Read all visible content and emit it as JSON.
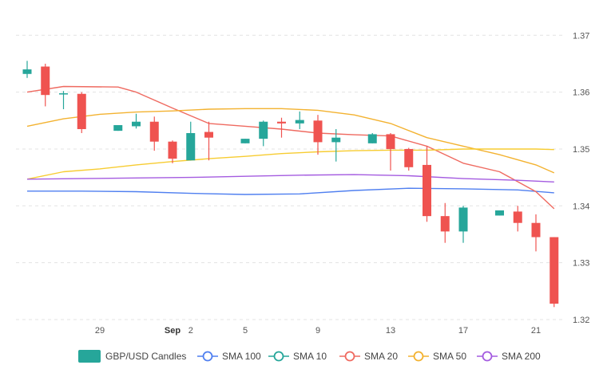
{
  "chart_data": {
    "type": "candlestick",
    "title": "",
    "xlabel": "",
    "ylabel": "",
    "ylim": [
      1.32,
      1.372
    ],
    "y_ticks": [
      "1.37",
      "1.36",
      "1.35",
      "1.34",
      "1.33",
      "1.32"
    ],
    "x_ticks": [
      {
        "day": 29,
        "label": "29",
        "bold": false
      },
      {
        "day": 33,
        "label": "Sep",
        "bold": true
      },
      {
        "day": 34,
        "label": "2",
        "bold": false
      },
      {
        "day": 37,
        "label": "5",
        "bold": false
      },
      {
        "day": 41,
        "label": "9",
        "bold": false
      },
      {
        "day": 45,
        "label": "13",
        "bold": false
      },
      {
        "day": 49,
        "label": "17",
        "bold": false
      },
      {
        "day": 53,
        "label": "21",
        "bold": false
      }
    ],
    "grid": "horizontal dashed",
    "legend_position": "bottom",
    "candles": {
      "name": "GBP/USD Candles",
      "up_color": "#26a69a",
      "down_color": "#ef5350",
      "data": [
        {
          "day": 25,
          "o": 1.3632,
          "h": 1.3655,
          "l": 1.3625,
          "c": 1.364
        },
        {
          "day": 26,
          "o": 1.3645,
          "h": 1.365,
          "l": 1.3575,
          "c": 1.3595
        },
        {
          "day": 27,
          "o": 1.3597,
          "h": 1.3602,
          "l": 1.357,
          "c": 1.3598
        },
        {
          "day": 28,
          "o": 1.3597,
          "h": 1.36,
          "l": 1.3528,
          "c": 1.3535
        },
        {
          "day": 30,
          "o": 1.3532,
          "h": 1.3542,
          "l": 1.3532,
          "c": 1.3542
        },
        {
          "day": 31,
          "o": 1.354,
          "h": 1.3562,
          "l": 1.3536,
          "c": 1.3548
        },
        {
          "day": 32,
          "o": 1.3548,
          "h": 1.3557,
          "l": 1.3497,
          "c": 1.3513
        },
        {
          "day": 33,
          "o": 1.3513,
          "h": 1.3515,
          "l": 1.3475,
          "c": 1.3483
        },
        {
          "day": 34,
          "o": 1.348,
          "h": 1.3548,
          "l": 1.348,
          "c": 1.3528
        },
        {
          "day": 35,
          "o": 1.353,
          "h": 1.3548,
          "l": 1.348,
          "c": 1.352
        },
        {
          "day": 37,
          "o": 1.351,
          "h": 1.3518,
          "l": 1.351,
          "c": 1.3518
        },
        {
          "day": 38,
          "o": 1.3518,
          "h": 1.355,
          "l": 1.3505,
          "c": 1.3548
        },
        {
          "day": 39,
          "o": 1.3548,
          "h": 1.3555,
          "l": 1.352,
          "c": 1.3545
        },
        {
          "day": 40,
          "o": 1.3545,
          "h": 1.3566,
          "l": 1.3535,
          "c": 1.3551
        },
        {
          "day": 41,
          "o": 1.355,
          "h": 1.356,
          "l": 1.349,
          "c": 1.3512
        },
        {
          "day": 42,
          "o": 1.3512,
          "h": 1.3535,
          "l": 1.3478,
          "c": 1.352
        },
        {
          "day": 44,
          "o": 1.351,
          "h": 1.3528,
          "l": 1.351,
          "c": 1.3526
        },
        {
          "day": 45,
          "o": 1.3526,
          "h": 1.3528,
          "l": 1.3462,
          "c": 1.35
        },
        {
          "day": 46,
          "o": 1.35,
          "h": 1.3502,
          "l": 1.3462,
          "c": 1.3468
        },
        {
          "day": 47,
          "o": 1.3472,
          "h": 1.3505,
          "l": 1.3372,
          "c": 1.3382
        },
        {
          "day": 48,
          "o": 1.3382,
          "h": 1.3405,
          "l": 1.3335,
          "c": 1.3355
        },
        {
          "day": 49,
          "o": 1.3355,
          "h": 1.34,
          "l": 1.3335,
          "c": 1.3397
        },
        {
          "day": 51,
          "o": 1.3383,
          "h": 1.3392,
          "l": 1.3383,
          "c": 1.3392
        },
        {
          "day": 52,
          "o": 1.339,
          "h": 1.34,
          "l": 1.3355,
          "c": 1.337
        },
        {
          "day": 53,
          "o": 1.337,
          "h": 1.3385,
          "l": 1.332,
          "c": 1.3345
        },
        {
          "day": 54,
          "o": 1.3345,
          "h": 1.3345,
          "l": 1.3222,
          "c": 1.3228
        }
      ]
    },
    "series": [
      {
        "name": "SMA 100",
        "color": "#4f7ff0",
        "x": [
          25,
          28,
          31,
          34,
          37,
          40,
          43,
          46,
          49,
          52,
          54
        ],
        "values": [
          1.3426,
          1.3426,
          1.3425,
          1.3422,
          1.342,
          1.3421,
          1.3427,
          1.3431,
          1.343,
          1.3428,
          1.3423
        ]
      },
      {
        "name": "SMA 10",
        "color": "#26a69a",
        "x": [],
        "values": []
      },
      {
        "name": "SMA 20",
        "color": "#ef6a60",
        "x": [
          25,
          27,
          30,
          31,
          33,
          35,
          37,
          39,
          41,
          43,
          45,
          47,
          49,
          51,
          53,
          54
        ],
        "values": [
          1.36,
          1.361,
          1.3609,
          1.36,
          1.3572,
          1.3545,
          1.354,
          1.3535,
          1.3528,
          1.3525,
          1.3523,
          1.3505,
          1.3475,
          1.346,
          1.3425,
          1.3395
        ]
      },
      {
        "name": "SMA 50",
        "color": "#f3b230",
        "x": [
          25,
          27,
          29,
          31,
          33,
          35,
          37,
          39,
          41,
          43,
          45,
          47,
          49,
          51,
          53,
          54
        ],
        "values": [
          1.354,
          1.3553,
          1.3561,
          1.3565,
          1.3567,
          1.357,
          1.3571,
          1.3571,
          1.3568,
          1.356,
          1.3545,
          1.352,
          1.3505,
          1.349,
          1.3472,
          1.3458
        ]
      },
      {
        "name": "SMA 50",
        "color": "#f7cc31",
        "x": [
          25,
          27,
          29,
          31,
          33,
          35,
          37,
          39,
          41,
          43,
          45,
          47,
          49,
          51,
          53,
          54
        ],
        "values": [
          1.3447,
          1.346,
          1.3465,
          1.3472,
          1.3478,
          1.3483,
          1.3487,
          1.3492,
          1.3495,
          1.3497,
          1.3498,
          1.3498,
          1.35,
          1.35,
          1.35,
          1.3499
        ]
      },
      {
        "name": "SMA 200",
        "color": "#a45be0",
        "x": [
          25,
          28,
          31,
          34,
          37,
          40,
          43,
          46,
          49,
          52,
          54
        ],
        "values": [
          1.3447,
          1.3448,
          1.3449,
          1.345,
          1.3452,
          1.3454,
          1.3455,
          1.3453,
          1.3448,
          1.3445,
          1.3442
        ]
      }
    ],
    "legend": [
      {
        "label": "GBP/USD Candles",
        "kind": "box",
        "color": "#26a69a"
      },
      {
        "label": "SMA 100",
        "kind": "line",
        "color": "#4f7ff0"
      },
      {
        "label": "SMA 10",
        "kind": "line",
        "color": "#26a69a"
      },
      {
        "label": "SMA 20",
        "kind": "line",
        "color": "#ef6a60"
      },
      {
        "label": "SMA 50",
        "kind": "line",
        "color": "#f3b230"
      },
      {
        "label": "SMA 200",
        "kind": "line",
        "color": "#a45be0"
      }
    ]
  }
}
